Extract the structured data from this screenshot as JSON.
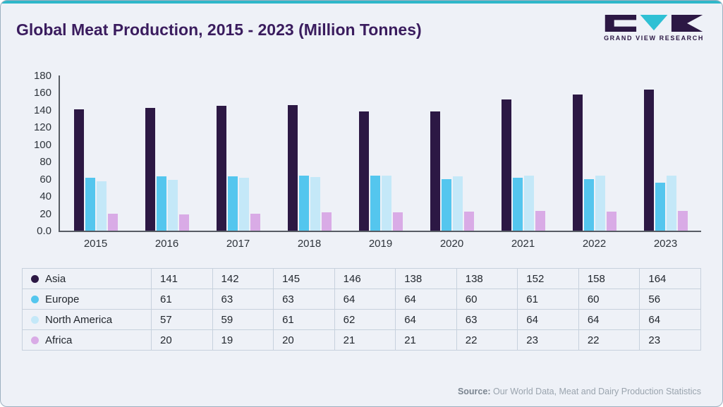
{
  "header": {
    "title": "Global Meat Production, 2015 - 2023 (Million Tonnes)",
    "logo_text": "GRAND VIEW RESEARCH"
  },
  "chart_data": {
    "type": "bar",
    "title": "Global Meat Production, 2015 - 2023 (Million Tonnes)",
    "categories": [
      "2015",
      "2016",
      "2017",
      "2018",
      "2019",
      "2020",
      "2021",
      "2022",
      "2023"
    ],
    "series": [
      {
        "name": "Asia",
        "color": "#2c1844",
        "values": [
          141,
          142,
          145,
          146,
          138,
          138,
          152,
          158,
          164
        ]
      },
      {
        "name": "Europe",
        "color": "#54c6ee",
        "values": [
          61,
          63,
          63,
          64,
          64,
          60,
          61,
          60,
          56
        ]
      },
      {
        "name": "North America",
        "color": "#c4e8f8",
        "values": [
          57,
          59,
          61,
          62,
          64,
          63,
          64,
          64,
          64
        ]
      },
      {
        "name": "Africa",
        "color": "#d9abe6",
        "values": [
          20,
          19,
          20,
          21,
          21,
          22,
          23,
          22,
          23
        ]
      }
    ],
    "ylim": [
      0,
      180
    ],
    "yticks": [
      {
        "value": 180,
        "label": "180"
      },
      {
        "value": 160,
        "label": "160"
      },
      {
        "value": 140,
        "label": "140"
      },
      {
        "value": 120,
        "label": "120"
      },
      {
        "value": 100,
        "label": "100"
      },
      {
        "value": 80,
        "label": "80"
      },
      {
        "value": 60,
        "label": "60"
      },
      {
        "value": 40,
        "label": "40"
      },
      {
        "value": 20,
        "label": "20"
      },
      {
        "value": 0,
        "label": "0.0"
      }
    ],
    "xlabel": "",
    "ylabel": "",
    "grid": false,
    "legend_position": "table-left"
  },
  "footer": {
    "source_label": "Source:",
    "source_text": " Our World Data, Meat and Dairy Production Statistics"
  },
  "colors": {
    "accent_top": "#2fb7c9",
    "title": "#3a1c5e",
    "background": "#eef1f7",
    "axis": "#575c64",
    "table_border": "#c7d1dd",
    "logo_dark": "#2c1844",
    "logo_teal": "#2fc0d4"
  }
}
